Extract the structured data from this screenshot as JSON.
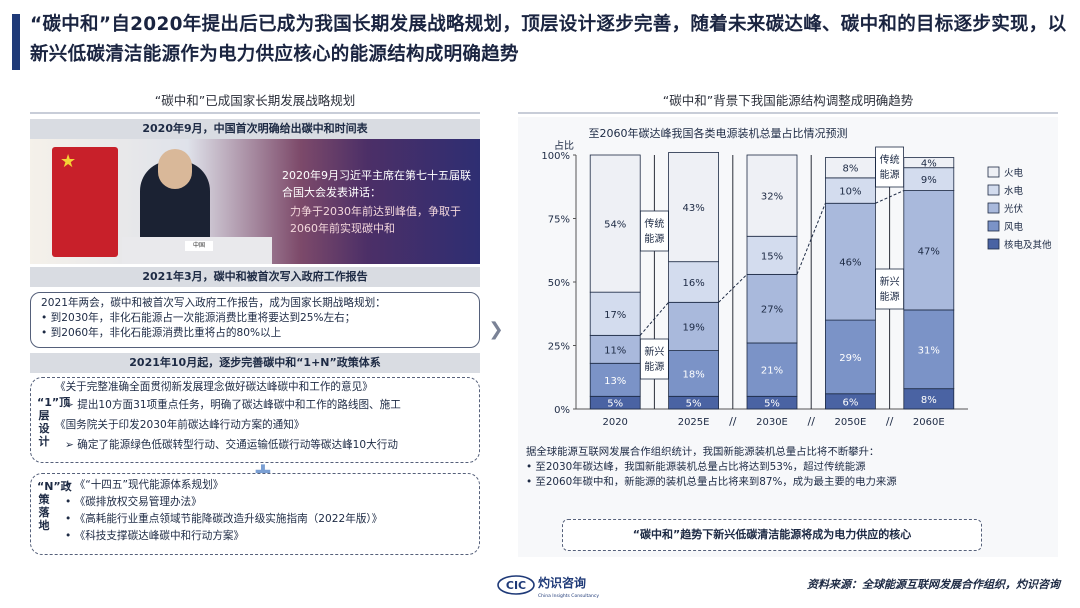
{
  "title": "“碳中和”自2020年提出后已成为我国长期发展战略规划，顶层设计逐步完善，随着未来碳达峰、碳中和的目标逐步实现，以新兴低碳清洁能源作为电力供应核心的能源结构成明确趋势",
  "left": {
    "section_title": "“碳中和”已成国家长期发展战略规划",
    "band1": "2020年9月，中国首次明确给出碳中和时间表",
    "banner": {
      "headline": "2020年9月习近平主席在第七十五届联合国大会发表讲话：",
      "quote": "力争于2030年前达到峰值，争取于2060年前实现碳中和",
      "nameplate": "中国"
    },
    "band2": "2021年3月，碳中和被首次写入政府工作报告",
    "box1": [
      "2021年两会，碳中和被首次写入政府工作报告，成为国家长期战略规划：",
      "•  到2030年，非化石能源占一次能源消费比重将要达到25%左右；",
      "•  到2060年，非化石能源消费比重将占的80%以上"
    ],
    "band3": "2021年10月起，逐步完善碳中和“1+N”政策体系",
    "box2": {
      "tag": "“1”顶层设计",
      "lines": [
        "《关于完整准确全面贯彻新发展理念做好碳达峰碳中和工作的意见》",
        "➢ 提出10方面31项重点任务，明确了碳达峰碳中和工作的路线图、施工",
        "《国务院关于印发2030年前碳达峰行动方案的通知》",
        "➢ 确定了能源绿色低碳转型行动、交通运输低碳行动等碳达峰10大行动"
      ]
    },
    "box3": {
      "tag": "“N”政策落地",
      "lines": [
        "•  《“十四五”现代能源体系规划》",
        "•  《碳排放权交易管理办法》",
        "•  《高耗能行业重点领域节能降碳改造升级实施指南（2022年版）》",
        "•  《科技支撑碳达峰碳中和行动方案》"
      ]
    }
  },
  "right": {
    "section_title": "“碳中和”背景下我国能源结构调整成明确趋势",
    "notes": [
      "据全球能源互联网发展合作组织统计，我国新能源装机总量占比将不断攀升：",
      "•  至2030年碳达峰，我国新能源装机总量占比将达到53%，超过传统能源",
      "•  至2060年碳中和，新能源的装机总量占比将来到87%，成为最主要的电力来源"
    ],
    "conclusion": "“碳中和”趋势下新兴低碳清洁能源将成为电力供应的核心"
  },
  "chart_data": {
    "type": "bar",
    "stacked": true,
    "title": "至2060年碳达峰我国各类电源装机总量占比情况预测",
    "ylabel": "占比",
    "ylim": [
      0,
      100
    ],
    "yticks": [
      "0%",
      "25%",
      "50%",
      "75%",
      "100%"
    ],
    "categories": [
      "2020",
      "2025E",
      "2030E",
      "2050E",
      "2060E"
    ],
    "series": [
      {
        "name": "核电及其他",
        "color": "#4a63a3",
        "values": [
          5,
          5,
          5,
          6,
          8
        ]
      },
      {
        "name": "风电",
        "color": "#7b93c7",
        "values": [
          13,
          18,
          21,
          29,
          31
        ]
      },
      {
        "name": "光伏",
        "color": "#a9b9dc",
        "values": [
          11,
          19,
          27,
          46,
          47
        ]
      },
      {
        "name": "水电",
        "color": "#d3dcee",
        "values": [
          17,
          16,
          15,
          10,
          9
        ]
      },
      {
        "name": "火电",
        "color": "#eef0f5",
        "values": [
          54,
          43,
          32,
          8,
          4
        ]
      }
    ],
    "labels": [
      [
        "5%",
        "13%",
        "11%",
        "17%",
        "54%"
      ],
      [
        "5%",
        "18%",
        "19%",
        "16%",
        "43%"
      ],
      [
        "5%",
        "21%",
        "27%",
        "15%",
        "32%"
      ],
      [
        "6%",
        "29%",
        "46%",
        "10%",
        "8%"
      ],
      [
        "8%",
        "31%",
        "47%",
        "9%",
        "4%"
      ]
    ],
    "annotations": [
      "传统能源",
      "新兴能源",
      "传统能源",
      "新兴能源"
    ],
    "axis_break": "//",
    "legend_position": "right"
  },
  "footer": {
    "logo_text": "灼识咨询",
    "logo_sub": "China Insights Consultancy",
    "logo_mark": "CIC",
    "source": "资料来源：全球能源互联网发展合作组织，灼识咨询"
  }
}
